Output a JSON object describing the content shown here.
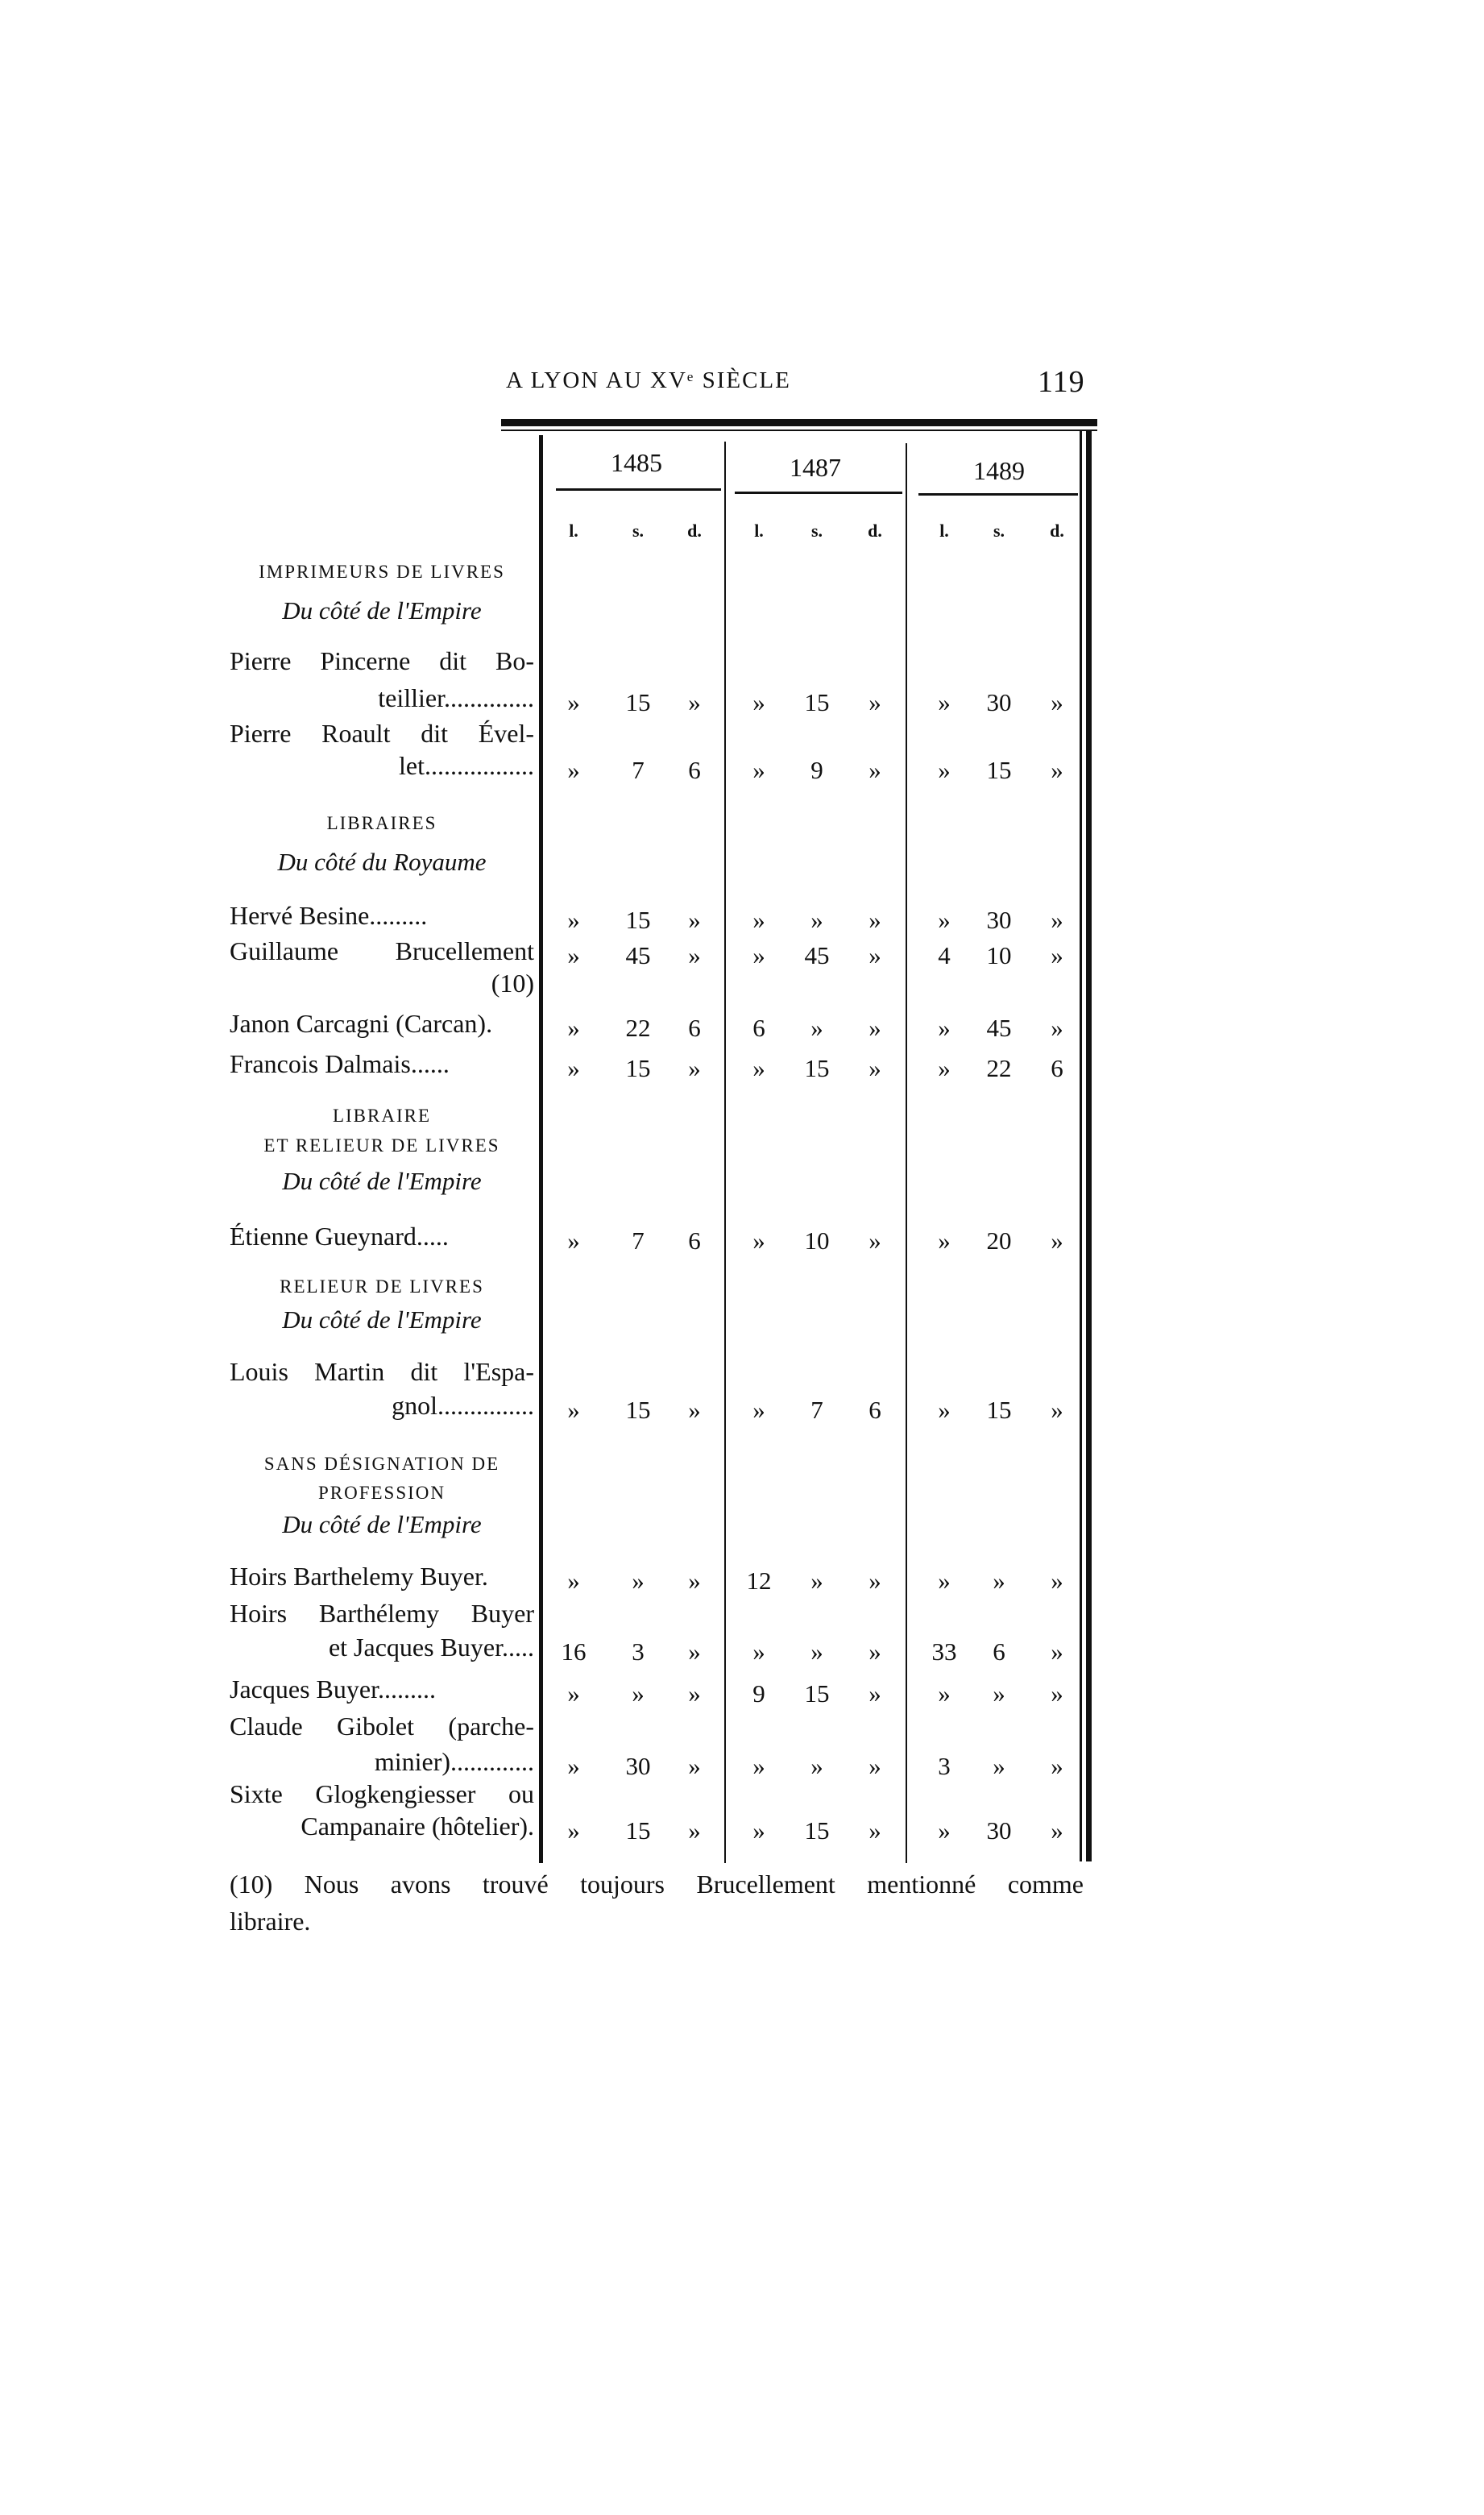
{
  "header": {
    "running_title": "A LYON AU XVᵉ SIÈCLE",
    "page_number": "119"
  },
  "table": {
    "years": [
      "1485",
      "1487",
      "1489"
    ],
    "units": [
      "l.",
      "s.",
      "d."
    ],
    "rows": [
      {
        "kind": "caps",
        "lines": [
          "IMPRIMEURS DE LIVRES"
        ]
      },
      {
        "kind": "ital",
        "lines": [
          "Du côté de l'Empire"
        ]
      },
      {
        "kind": "entry",
        "lines": [
          "Pierre Pincerne dit Bo-",
          "teillier.............."
        ],
        "values": [
          "»",
          "15",
          "»",
          "»",
          "15",
          "»",
          "»",
          "30",
          "»"
        ]
      },
      {
        "kind": "entry",
        "lines": [
          "Pierre Roault dit Ével-",
          "let................."
        ],
        "values": [
          "»",
          "7",
          "6",
          "»",
          "9",
          "»",
          "»",
          "15",
          "»"
        ]
      },
      {
        "kind": "caps",
        "lines": [
          "LIBRAIRES"
        ]
      },
      {
        "kind": "ital",
        "lines": [
          "Du côté du Royaume"
        ]
      },
      {
        "kind": "entry",
        "lines": [
          "Hervé Besine........."
        ],
        "values": [
          "»",
          "15",
          "»",
          "»",
          "»",
          "»",
          "»",
          "30",
          "»"
        ]
      },
      {
        "kind": "entry",
        "lines": [
          "Guillaume Brucellement",
          "(10)"
        ],
        "values": [
          "»",
          "45",
          "»",
          "»",
          "45",
          "»",
          "4",
          "10",
          "»"
        ],
        "values_on_first": true
      },
      {
        "kind": "entry",
        "lines": [
          "Janon Carcagni (Carcan)."
        ],
        "values": [
          "»",
          "22",
          "6",
          "6",
          "»",
          "»",
          "»",
          "45",
          "»"
        ]
      },
      {
        "kind": "entry",
        "lines": [
          "Francois Dalmais......"
        ],
        "values": [
          "»",
          "15",
          "»",
          "»",
          "15",
          "»",
          "»",
          "22",
          "6"
        ]
      },
      {
        "kind": "caps",
        "lines": [
          "LIBRAIRE",
          "ET RELIEUR DE LIVRES"
        ]
      },
      {
        "kind": "ital",
        "lines": [
          "Du côté de l'Empire"
        ]
      },
      {
        "kind": "entry",
        "lines": [
          "Étienne Gueynard....."
        ],
        "values": [
          "»",
          "7",
          "6",
          "»",
          "10",
          "»",
          "»",
          "20",
          "»"
        ]
      },
      {
        "kind": "caps",
        "lines": [
          "RELIEUR DE LIVRES"
        ]
      },
      {
        "kind": "ital",
        "lines": [
          "Du côté de l'Empire"
        ]
      },
      {
        "kind": "entry",
        "lines": [
          "Louis Martin dit l'Espa-",
          "gnol..............."
        ],
        "values": [
          "»",
          "15",
          "»",
          "»",
          "7",
          "6",
          "»",
          "15",
          "»"
        ]
      },
      {
        "kind": "caps",
        "lines": [
          "SANS DÉSIGNATION DE",
          "PROFESSION"
        ]
      },
      {
        "kind": "ital",
        "lines": [
          "Du côté de l'Empire"
        ]
      },
      {
        "kind": "entry",
        "lines": [
          "Hoirs Barthelemy Buyer."
        ],
        "values": [
          "»",
          "»",
          "»",
          "12",
          "»",
          "»",
          "»",
          "»",
          "»"
        ]
      },
      {
        "kind": "entry",
        "lines": [
          "Hoirs Barthélemy Buyer",
          "et Jacques Buyer....."
        ],
        "values": [
          "16",
          "3",
          "»",
          "»",
          "»",
          "»",
          "33",
          "6",
          "»"
        ]
      },
      {
        "kind": "entry",
        "lines": [
          "Jacques Buyer........."
        ],
        "values": [
          "»",
          "»",
          "»",
          "9",
          "15",
          "»",
          "»",
          "»",
          "»"
        ]
      },
      {
        "kind": "entry",
        "lines": [
          "Claude Gibolet (parche-",
          "minier)............."
        ],
        "values": [
          "»",
          "30",
          "»",
          "»",
          "»",
          "»",
          "3",
          "»",
          "»"
        ]
      },
      {
        "kind": "entry",
        "lines": [
          "Sixte Glogkengiesser ou",
          "Campanaire (hôtelier)."
        ],
        "values": [
          "»",
          "15",
          "»",
          "»",
          "15",
          "»",
          "»",
          "30",
          "»"
        ]
      }
    ]
  },
  "footnote": {
    "line1": "(10) Nous avons trouvé toujours Brucellement mentionné comme",
    "line2": "libraire."
  }
}
